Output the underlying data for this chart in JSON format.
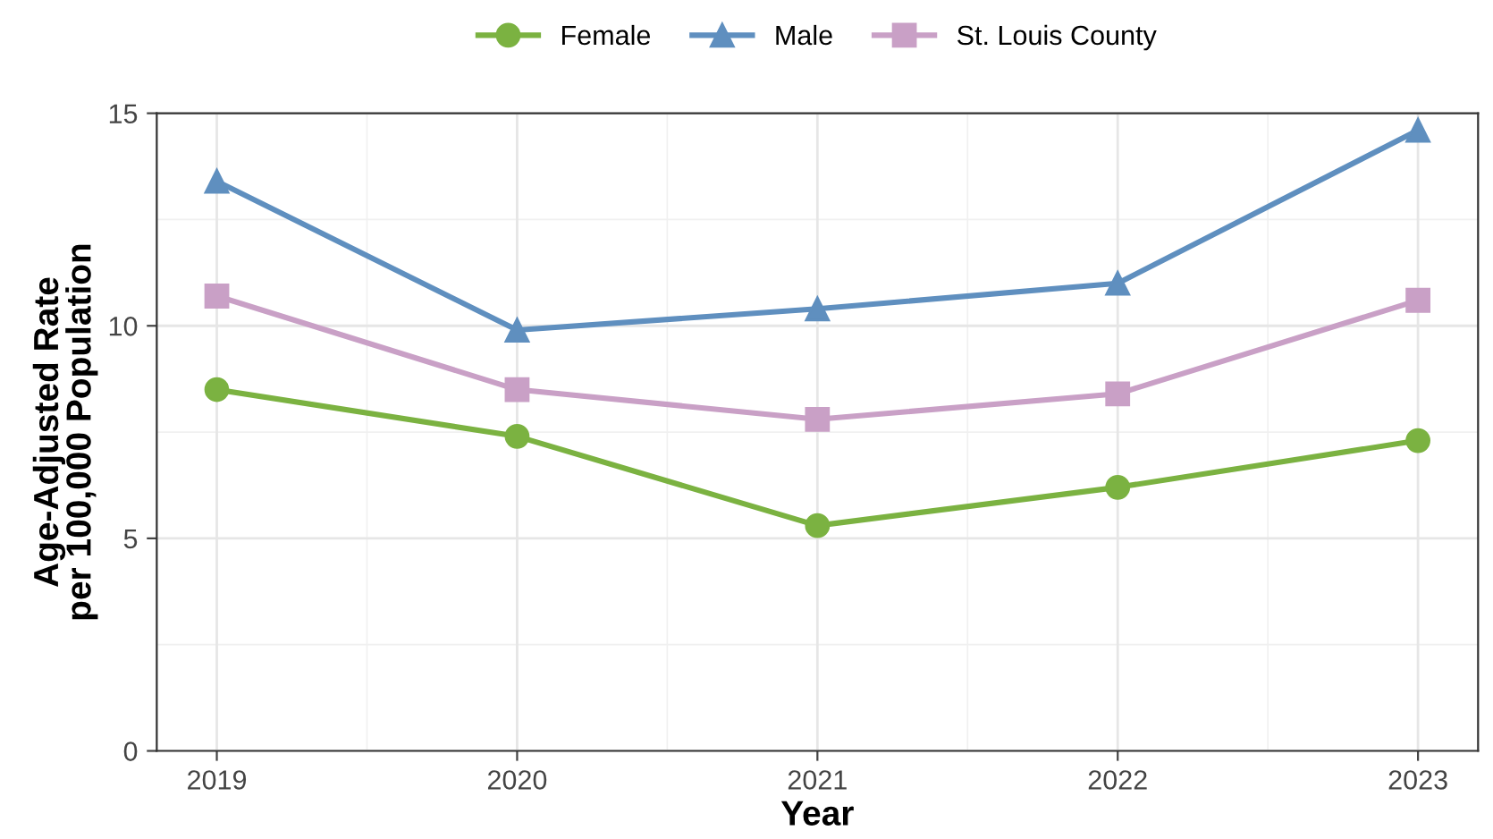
{
  "chart_data": {
    "type": "line",
    "xlabel": "Year",
    "ylabel": "Age-Adjusted Rate\nper 100,000 Population",
    "x": [
      2019,
      2020,
      2021,
      2022,
      2023
    ],
    "series": [
      {
        "name": "Female",
        "color": "#7bb241",
        "marker": "circle",
        "values": [
          8.5,
          7.4,
          5.3,
          6.2,
          7.3
        ]
      },
      {
        "name": "Male",
        "color": "#5f8fbf",
        "marker": "triangle",
        "values": [
          13.4,
          9.9,
          10.4,
          11.0,
          14.6
        ]
      },
      {
        "name": "St. Louis County",
        "color": "#c9a0c6",
        "marker": "square",
        "values": [
          10.7,
          8.5,
          7.8,
          8.4,
          10.6
        ]
      }
    ],
    "xlim": [
      2018.8,
      2023.2
    ],
    "xticks": [
      2019,
      2020,
      2021,
      2022,
      2023
    ],
    "ylim": [
      0,
      15
    ],
    "yticks": [
      0,
      5,
      10,
      15
    ],
    "grid": true,
    "legend": "top",
    "line_style": "solid"
  }
}
